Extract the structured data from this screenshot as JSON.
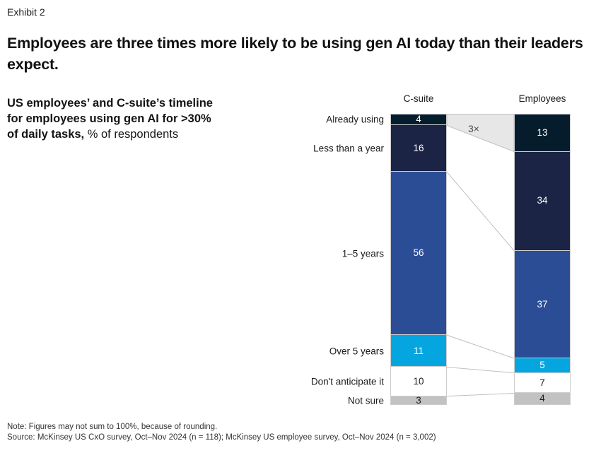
{
  "exhibit_label": "Exhibit 2",
  "title": "Employees are three times more likely to be using gen AI today than their leaders expect.",
  "subtitle": {
    "bold": "US employees’ and C-suite’s timeline for employees using gen AI for >30% of daily tasks,",
    "regular": " % of respondents"
  },
  "footer": {
    "note": "Note: Figures may not sum to 100%, because of rounding.",
    "source": "Source: McKinsey US CxO survey, Oct–Nov 2024 (n = 118); McKinsey US employee survey, Oct–Nov 2024 (n = 3,002)"
  },
  "chart_data": {
    "type": "bar",
    "subtype": "stacked-100pct-column-comparison",
    "title": "US employees’ and C-suite’s timeline for employees using gen AI for >30% of daily tasks, % of respondents",
    "categories": [
      "Already using",
      "Less than a year",
      "1–5 years",
      "Over 5 years",
      "Don't anticipate it",
      "Not sure"
    ],
    "series": [
      {
        "name": "C-suite",
        "values": [
          4,
          16,
          56,
          11,
          10,
          3
        ]
      },
      {
        "name": "Employees",
        "values": [
          13,
          34,
          37,
          5,
          7,
          4
        ]
      }
    ],
    "annotation": "3×",
    "annotation_meaning": "Employees already using is 3x the C-suite estimate (13 vs 4)",
    "ylim": [
      0,
      100
    ],
    "legend": "none",
    "grid": "off",
    "colors": [
      {
        "fill": "#051C2C",
        "text": "#FFFFFF"
      },
      {
        "fill": "#1B2444",
        "text": "#FFFFFF"
      },
      {
        "fill": "#2B4D96",
        "text": "#FFFFFF"
      },
      {
        "fill": "#05A6DF",
        "text": "#FFFFFF"
      },
      {
        "fill": "#FFFFFF",
        "text": "#1A1A1A"
      },
      {
        "fill": "#C2C2C2",
        "text": "#1A1A1A"
      }
    ],
    "band_fill": "#E7E7E7",
    "line_color": "#C0C0C0",
    "annotation_color": "#4A4A4A"
  }
}
